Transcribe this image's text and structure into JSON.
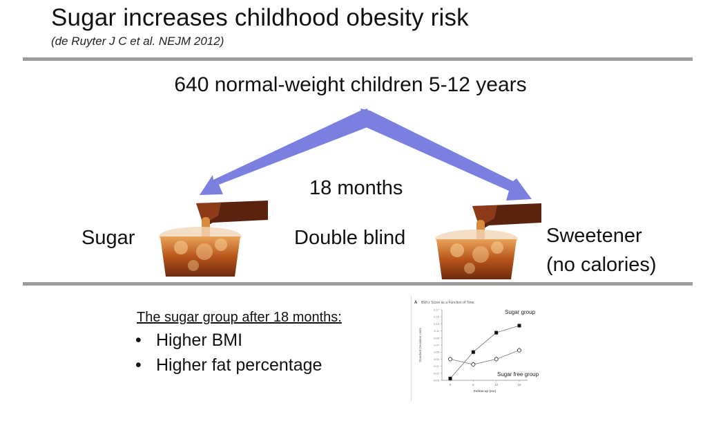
{
  "slide": {
    "title": "Sugar increases childhood obesity risk",
    "citation": "(de Ruyter J C et al. NEJM 2012)",
    "population": "640 normal-weight children 5-12 years",
    "duration": "18 months",
    "design": "Double blind",
    "arm_sugar": "Sugar",
    "arm_sweetener_line1": "Sweetener",
    "arm_sweetener_line2": "(no calories)",
    "results_heading": "The sugar group after 18 months:",
    "results": [
      "Higher BMI",
      "Higher fat percentage"
    ],
    "accent_color": "#7b7fe0",
    "rule_color": "#9e9e9e"
  },
  "chart_data": {
    "type": "line",
    "panel_label": "A",
    "title": "BMI z Score as a Function of Time",
    "xlabel": "Follow-up (mo)",
    "ylabel": "Standard Deviation Units",
    "x": [
      0,
      6,
      12,
      18
    ],
    "xticks": [
      "0",
      "6",
      "12",
      "18"
    ],
    "yticks": [
      "-0.03",
      "-0.01",
      "0.01",
      "0.03",
      "0.05",
      "0.07",
      "0.09",
      "0.11",
      "0.13",
      "0.15",
      "0.17"
    ],
    "ylim": [
      -0.03,
      0.17
    ],
    "series": [
      {
        "name": "Sugar group",
        "values": [
          -0.025,
          0.05,
          0.105,
          0.125
        ],
        "marker": "filled-square"
      },
      {
        "name": "Sugar free group",
        "values": [
          0.03,
          0.015,
          0.03,
          0.055
        ],
        "marker": "open-circle"
      }
    ]
  }
}
